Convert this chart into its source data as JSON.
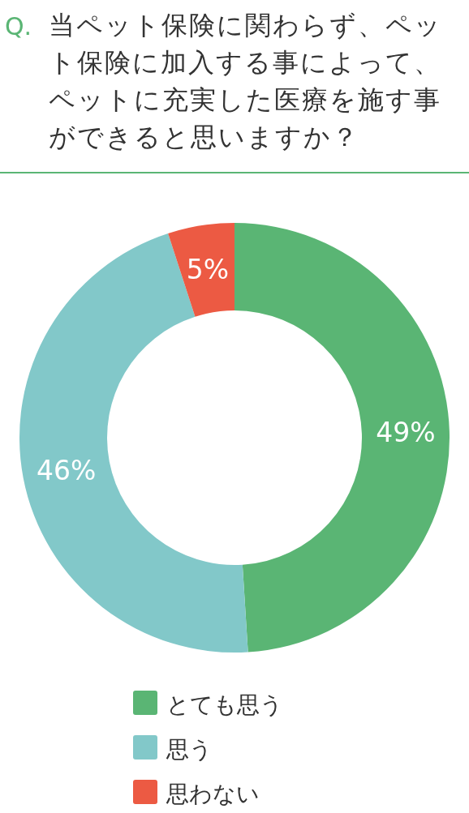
{
  "chart_data": {
    "type": "donut",
    "title": "当ペット保険に関わらず、ペット保険に加入する事によって、ペットに充実した医療を施す事ができると思いますか？",
    "annotations": [
      "Q."
    ],
    "categories": [
      "とても思う",
      "思う",
      "思わない"
    ],
    "values": [
      49,
      46,
      5
    ],
    "colors": [
      "#5ab574",
      "#82c8c9",
      "#ec5a43"
    ],
    "value_labels": [
      "49%",
      "46%",
      "5%"
    ],
    "legend": "bottom"
  }
}
